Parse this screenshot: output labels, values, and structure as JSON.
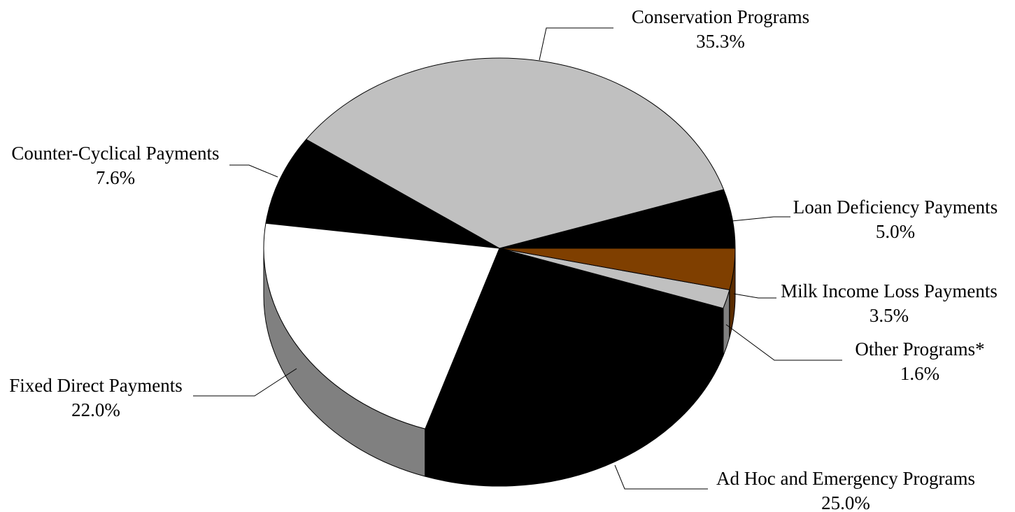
{
  "chart_data": {
    "type": "pie",
    "style": "3d",
    "title": "",
    "slices": [
      {
        "name": "Loan Deficiency Payments",
        "value": 5.0,
        "label": "5.0%",
        "color": "#000000",
        "side_color": "#000000"
      },
      {
        "name": "Conservation Programs",
        "value": 35.3,
        "label": "35.3%",
        "color": "#c0c0c0",
        "side_color": "#909090"
      },
      {
        "name": "Counter-Cyclical Payments",
        "value": 7.6,
        "label": "7.6%",
        "color": "#000000",
        "side_color": "#000000"
      },
      {
        "name": "Fixed Direct Payments",
        "value": 22.0,
        "label": "22.0%",
        "color": "#ffffff",
        "side_color": "#808080"
      },
      {
        "name": "Ad Hoc and Emergency Programs",
        "value": 25.0,
        "label": "25.0%",
        "color": "#000000",
        "side_color": "#000000"
      },
      {
        "name": "Other Programs*",
        "value": 1.6,
        "label": "1.6%",
        "color": "#c0c0c0",
        "side_color": "#808080"
      },
      {
        "name": "Milk Income Loss Payments",
        "value": 3.5,
        "label": "3.5%",
        "color": "#7f3f00",
        "side_color": "#5a2c00"
      }
    ]
  }
}
